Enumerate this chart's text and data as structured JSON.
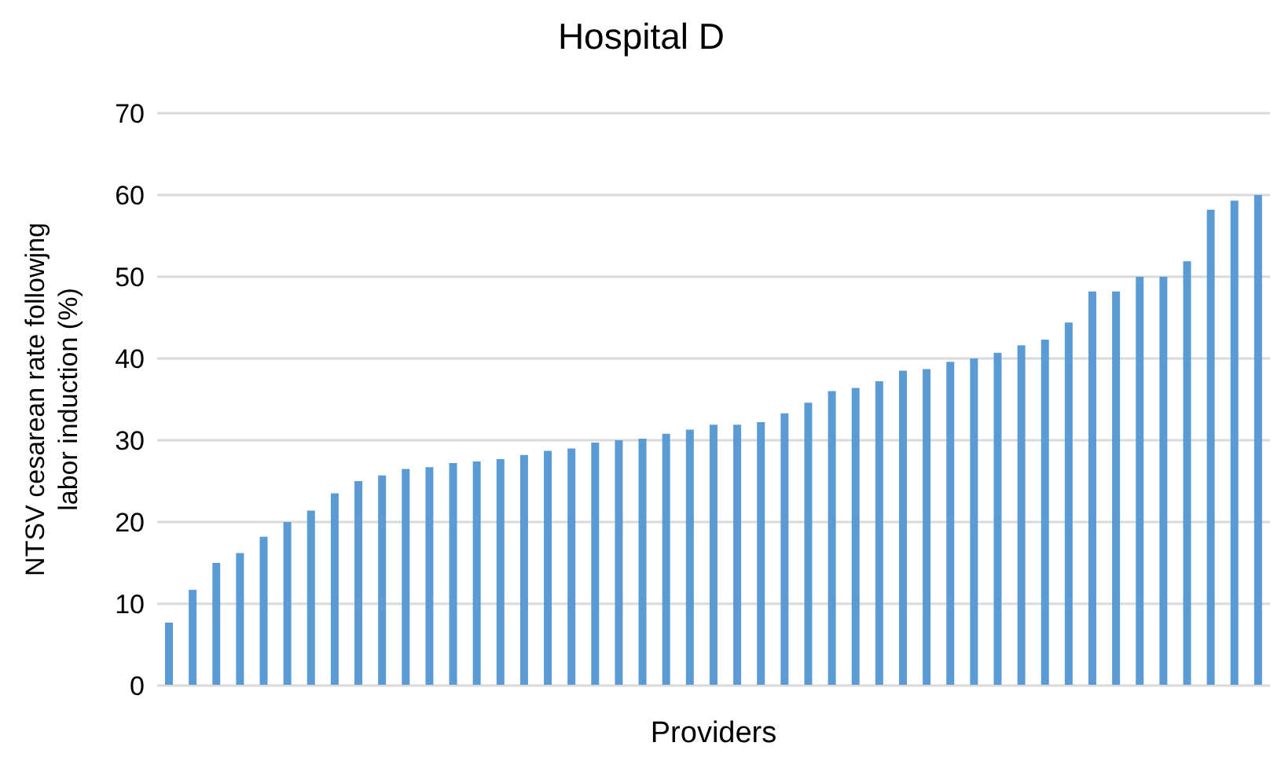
{
  "chart_data": {
    "type": "bar",
    "title": "Hospital D",
    "xlabel": "Providers",
    "ylabel": "NTSV cesarean rate followjng labor induction (%)",
    "categories": [
      null,
      null,
      null,
      null,
      null,
      null,
      null,
      null,
      null,
      null,
      null,
      null,
      null,
      null,
      null,
      null,
      null,
      null,
      null,
      null,
      null,
      null,
      null,
      null,
      null,
      null,
      null,
      null,
      null,
      null,
      null,
      null,
      null,
      null,
      null,
      null,
      null,
      null,
      null,
      null,
      null,
      null,
      null,
      null,
      null,
      null,
      null
    ],
    "values": [
      7.7,
      11.7,
      15,
      16.2,
      18.2,
      20,
      21.4,
      23.5,
      25,
      25.7,
      26.5,
      26.7,
      27.2,
      27.4,
      27.7,
      28.2,
      28.7,
      29,
      29.7,
      30,
      30.2,
      30.8,
      31.3,
      31.9,
      31.9,
      32.2,
      33.3,
      34.6,
      36,
      36.4,
      37.2,
      38.5,
      38.7,
      39.6,
      40,
      40.7,
      41.6,
      42.3,
      44.4,
      48.2,
      48.2,
      50,
      50,
      51.9,
      58.2,
      59.3,
      60
    ],
    "color": "#5b9bd5",
    "ylim": [
      0,
      70
    ],
    "yticks": [
      0,
      10,
      20,
      30,
      40,
      50,
      60,
      70
    ],
    "grid": "y"
  }
}
